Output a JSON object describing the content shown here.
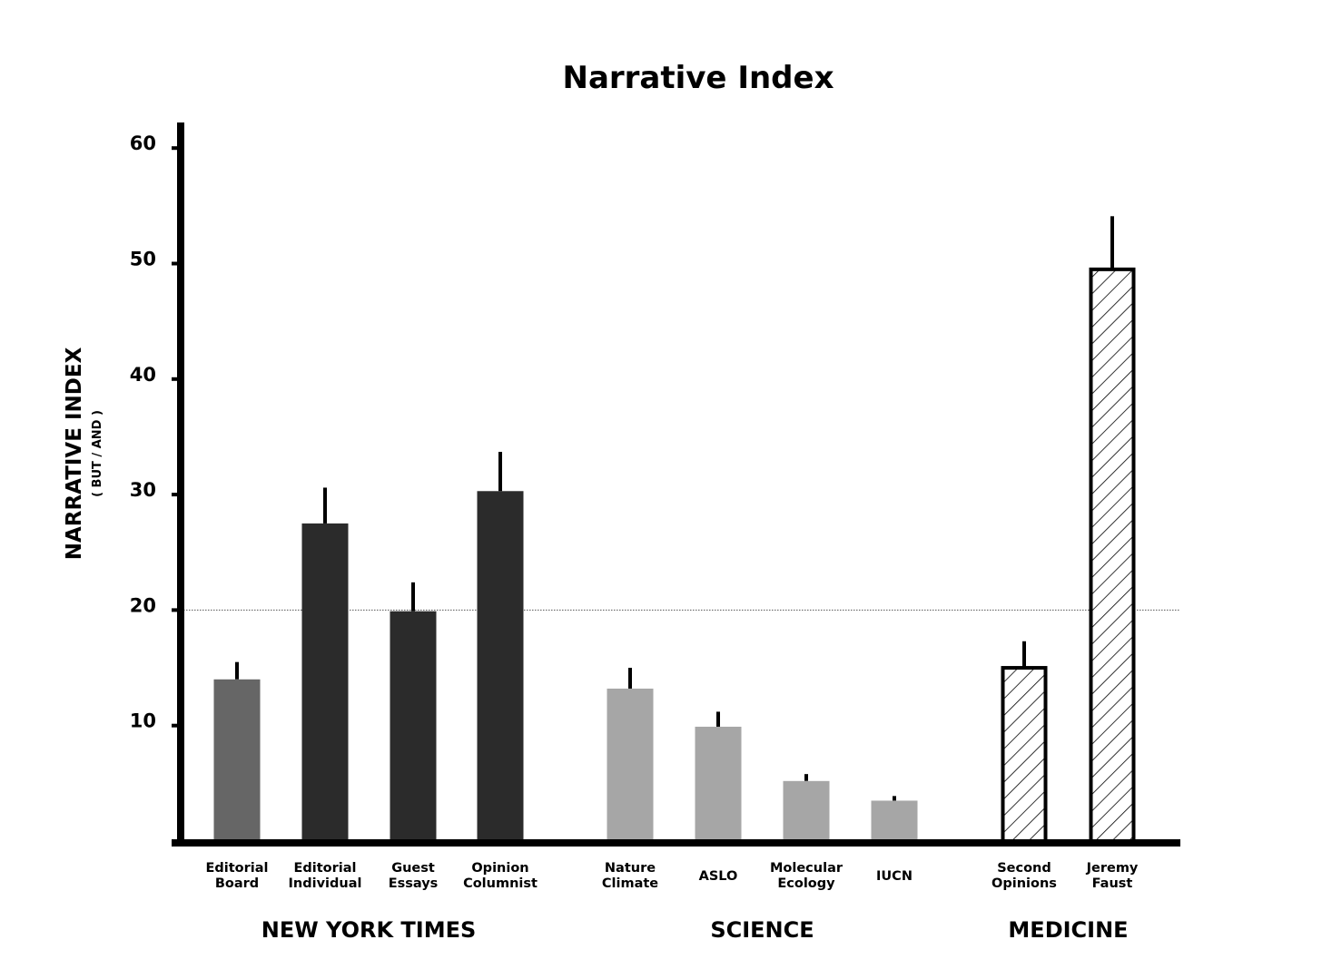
{
  "chart_data": {
    "type": "bar",
    "title": "Narrative Index",
    "ylabel": "NARRATIVE INDEX",
    "ylabel_sub": "( BUT / AND )",
    "xlabel": "",
    "ylim": [
      0,
      62
    ],
    "yticks": [
      10,
      20,
      30,
      40,
      50,
      60
    ],
    "reference_line": 20,
    "grid": false,
    "legend": "none",
    "colors": {
      "nyt_board": "#666666",
      "nyt": "#2b2b2b",
      "science": "#a6a6a6",
      "medicine": "hatched",
      "axis": "#000000"
    },
    "groups": [
      {
        "name": "NEW YORK TIMES",
        "bars": [
          {
            "label": [
              "Editorial",
              "Board"
            ],
            "value": 14.0,
            "error": 1.5,
            "style": "nyt_board"
          },
          {
            "label": [
              "Editorial",
              "Individual"
            ],
            "value": 27.5,
            "error": 3.1,
            "style": "nyt"
          },
          {
            "label": [
              "Guest",
              "Essays"
            ],
            "value": 19.9,
            "error": 2.5,
            "style": "nyt"
          },
          {
            "label": [
              "Opinion",
              "Columnist"
            ],
            "value": 30.3,
            "error": 3.4,
            "style": "nyt"
          }
        ]
      },
      {
        "name": "SCIENCE",
        "bars": [
          {
            "label": [
              "Nature",
              "Climate"
            ],
            "value": 13.2,
            "error": 1.8,
            "style": "science"
          },
          {
            "label": [
              "ASLO"
            ],
            "value": 9.9,
            "error": 1.3,
            "style": "science"
          },
          {
            "label": [
              "Molecular",
              "Ecology"
            ],
            "value": 5.2,
            "error": 0.6,
            "style": "science"
          },
          {
            "label": [
              "IUCN"
            ],
            "value": 3.5,
            "error": 0.4,
            "style": "science"
          }
        ]
      },
      {
        "name": "MEDICINE",
        "bars": [
          {
            "label": [
              "Second",
              "Opinions"
            ],
            "value": 15.0,
            "error": 2.3,
            "style": "medicine"
          },
          {
            "label": [
              "Jeremy",
              "Faust"
            ],
            "value": 49.5,
            "error": 4.6,
            "style": "medicine"
          }
        ]
      }
    ]
  }
}
